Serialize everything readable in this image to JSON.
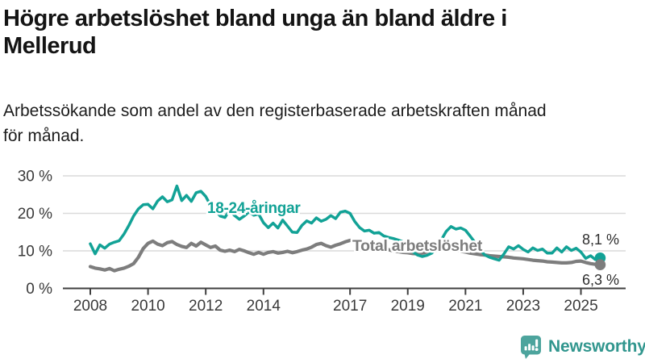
{
  "header": {
    "title_line1": "Högre arbetslöshet bland unga än bland äldre i",
    "title_line2": "Mellerud",
    "subtitle_line1": "Arbetssökande som andel av den registerbaserade arbetskraften månad",
    "subtitle_line2": "för månad."
  },
  "footer": {
    "brand_name": "Newsworthy"
  },
  "colors": {
    "accent_teal": "#12A296",
    "line_gray": "#7D7D7D",
    "grid": "#DADADA",
    "axis_line": "#3F3F3F",
    "axis_text": "#3A3A3A",
    "value_label_text": "#2E2E2E",
    "logo_teal": "#4DA49D",
    "logo_text_teal": "#31968E"
  },
  "chart_data": {
    "type": "line",
    "title": "Högre arbetslöshet bland unga än bland äldre i Mellerud",
    "subtitle": "Arbetssökande som andel av den registerbaserade arbetskraften månad för månad.",
    "unit": "%",
    "grid": "horizontal",
    "legend_position": "inline-labels",
    "x_start_year": 2008,
    "x_interval_years": 0.166667,
    "xlim": [
      2007.05,
      2026.55
    ],
    "ylim": [
      0,
      31.5
    ],
    "x_ticks": [
      2008,
      2010,
      2012,
      2014,
      2017,
      2019,
      2021,
      2023,
      2025
    ],
    "x_tick_labels": [
      "2008",
      "2010",
      "2012",
      "2014",
      "2017",
      "2019",
      "2021",
      "2023",
      "2025"
    ],
    "y_ticks": [
      0,
      10,
      20,
      30
    ],
    "y_tick_labels": [
      "0 %",
      "10 %",
      "20 %",
      "30 %"
    ],
    "series": [
      {
        "name": "18-24-åringar",
        "color": "#12A296",
        "final_value": 8.1,
        "end_label": "8,1 %",
        "values": [
          11.9,
          9.2,
          11.6,
          10.7,
          11.8,
          12.3,
          12.7,
          14.5,
          16.7,
          19.3,
          21.2,
          22.3,
          22.4,
          21.2,
          23.3,
          24.4,
          23.1,
          23.6,
          27.3,
          23.4,
          24.8,
          23.2,
          25.5,
          25.9,
          24.5,
          22.1,
          20.9,
          19.3,
          18.9,
          20.9,
          19.4,
          18.4,
          19.3,
          20.4,
          19.5,
          19.8,
          17.5,
          16.2,
          17.4,
          16.1,
          18.2,
          16.6,
          15.0,
          14.9,
          16.8,
          18.0,
          17.4,
          18.8,
          17.9,
          18.4,
          19.4,
          18.6,
          20.3,
          20.6,
          20.0,
          17.8,
          16.2,
          15.3,
          15.5,
          14.7,
          14.9,
          14.0,
          13.6,
          13.3,
          12.9,
          12.4,
          11.3,
          9.8,
          8.9,
          8.5,
          8.8,
          9.4,
          10.8,
          13.0,
          15.2,
          16.5,
          15.8,
          16.1,
          15.5,
          13.9,
          12.2,
          10.4,
          8.9,
          8.3,
          7.9,
          7.5,
          9.2,
          11.1,
          10.5,
          11.4,
          10.4,
          9.7,
          10.8,
          10.1,
          10.5,
          9.4,
          9.4,
          10.8,
          9.7,
          11.1,
          10.1,
          10.7,
          9.7,
          8.0,
          8.7,
          7.7,
          8.1
        ]
      },
      {
        "name": "Total arbetslöshet",
        "color": "#7D7D7D",
        "final_value": 6.3,
        "end_label": "6,3 %",
        "values": [
          5.8,
          5.4,
          5.2,
          4.9,
          5.3,
          4.7,
          5.1,
          5.4,
          5.9,
          6.6,
          8.3,
          10.6,
          12.0,
          12.6,
          11.8,
          11.4,
          12.2,
          12.5,
          11.7,
          11.2,
          10.9,
          12.0,
          11.3,
          12.3,
          11.6,
          10.9,
          11.3,
          10.2,
          9.9,
          10.2,
          9.8,
          10.4,
          10.0,
          9.5,
          9.1,
          9.6,
          9.1,
          9.6,
          9.8,
          9.4,
          9.6,
          9.9,
          9.5,
          9.8,
          10.2,
          10.5,
          11.0,
          11.7,
          12.0,
          11.4,
          11.0,
          11.5,
          11.9,
          12.4,
          12.8,
          12.9,
          12.4,
          12.0,
          11.6,
          11.2,
          10.9,
          10.6,
          10.3,
          10.0,
          9.8,
          9.6,
          9.5,
          9.3,
          9.2,
          9.4,
          9.7,
          9.9,
          10.1,
          10.4,
          10.6,
          10.4,
          10.2,
          9.9,
          9.7,
          9.4,
          9.2,
          9.0,
          8.9,
          8.7,
          8.6,
          8.5,
          8.4,
          8.3,
          8.1,
          8.0,
          7.9,
          7.7,
          7.5,
          7.4,
          7.3,
          7.1,
          7.0,
          6.9,
          6.8,
          6.8,
          6.9,
          7.2,
          7.3,
          6.9,
          6.6,
          6.4,
          6.3
        ]
      }
    ]
  }
}
